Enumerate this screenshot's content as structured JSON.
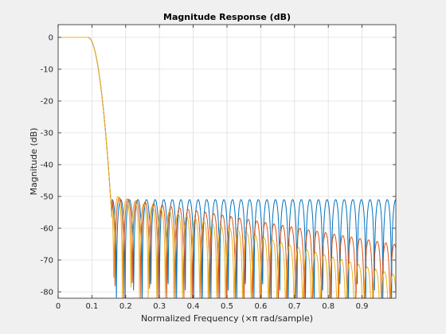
{
  "chart_data": {
    "type": "line",
    "title": "Magnitude Response (dB)",
    "xlabel": "Normalized Frequency (×π rad/sample)",
    "ylabel": "Magnitude (dB)",
    "xlim": [
      0,
      1
    ],
    "ylim": [
      -82,
      4
    ],
    "xticks": [
      0,
      0.1,
      0.2,
      0.3,
      0.4,
      0.5,
      0.6,
      0.7,
      0.8,
      0.9
    ],
    "xtick_labels": [
      "0",
      "0.1",
      "0.2",
      "0.3",
      "0.4",
      "0.5",
      "0.6",
      "0.7",
      "0.8",
      "0.9"
    ],
    "yticks": [
      0,
      -10,
      -20,
      -30,
      -40,
      -50,
      -60,
      -70,
      -80
    ],
    "ytick_labels": [
      "0",
      "-10",
      "-20",
      "-30",
      "-40",
      "-50",
      "-60",
      "-70",
      "-80"
    ],
    "grid": true,
    "passband_edge": 0.1,
    "stopband_edge": 0.16,
    "series": [
      {
        "color": "#0072BD",
        "stopband_peak_db": -51,
        "decay_db_per_unit": 0,
        "lobes": 33
      },
      {
        "color": "#D95319",
        "stopband_peak_db": -50,
        "decay_db_per_unit": 18,
        "lobes": 33
      },
      {
        "color": "#EDB120",
        "stopband_peak_db": -49.5,
        "decay_db_per_unit": 30,
        "lobes": 33
      }
    ]
  }
}
